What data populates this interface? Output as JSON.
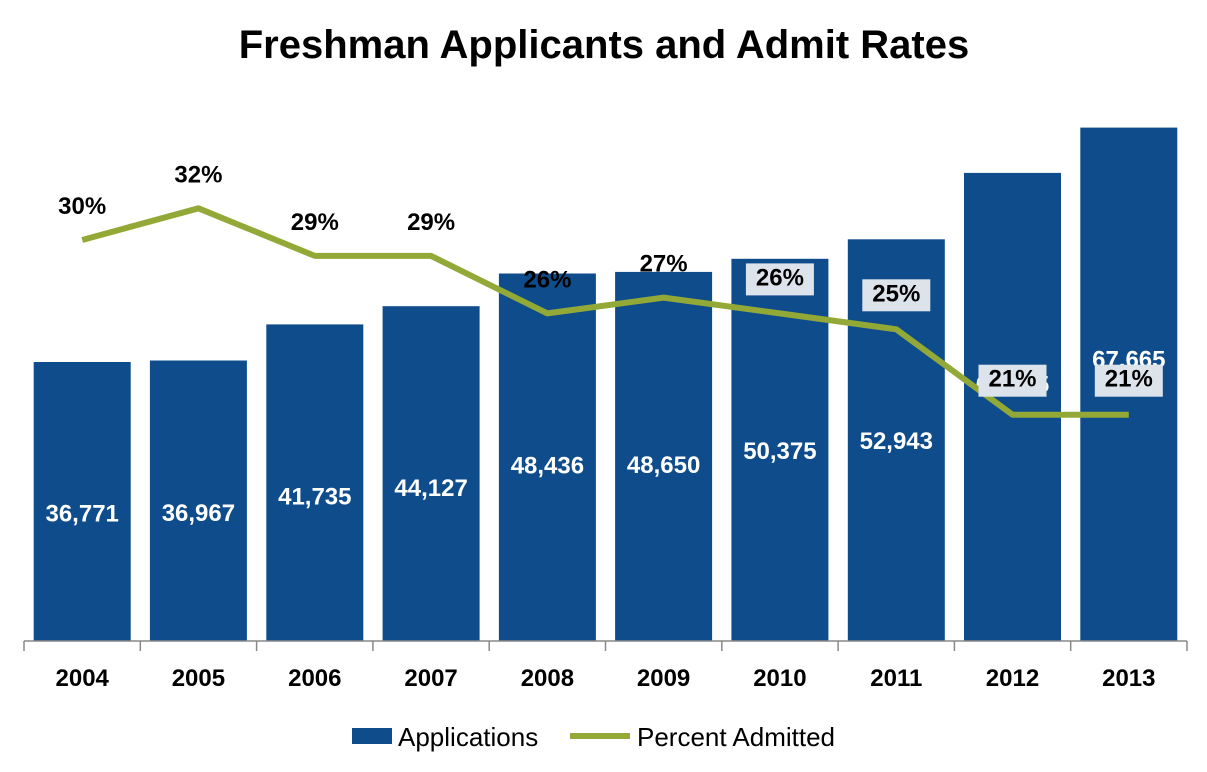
{
  "chart_data": {
    "type": "bar",
    "title": "Freshman Applicants and Admit Rates",
    "categories": [
      "2004",
      "2005",
      "2006",
      "2007",
      "2008",
      "2009",
      "2010",
      "2011",
      "2012",
      "2013"
    ],
    "series": [
      {
        "name": "Applications",
        "type": "bar",
        "color": "#0f4c8c",
        "values": [
          36771,
          36967,
          41735,
          44127,
          48436,
          48650,
          50375,
          52943,
          61695,
          67665
        ],
        "labels": [
          "36,771",
          "36,967",
          "41,735",
          "44,127",
          "48,436",
          "48,650",
          "50,375",
          "52,943",
          "61,695",
          "67,665"
        ]
      },
      {
        "name": "Percent Admitted",
        "type": "line",
        "color": "#93a937",
        "values": [
          30,
          32,
          29,
          29,
          26,
          27,
          26,
          25,
          21,
          21
        ],
        "labels": [
          "30%",
          "32%",
          "29%",
          "29%",
          "26%",
          "27%",
          "26%",
          "25%",
          "21%",
          "21%"
        ]
      }
    ],
    "legend": "bottom",
    "grid": false
  }
}
